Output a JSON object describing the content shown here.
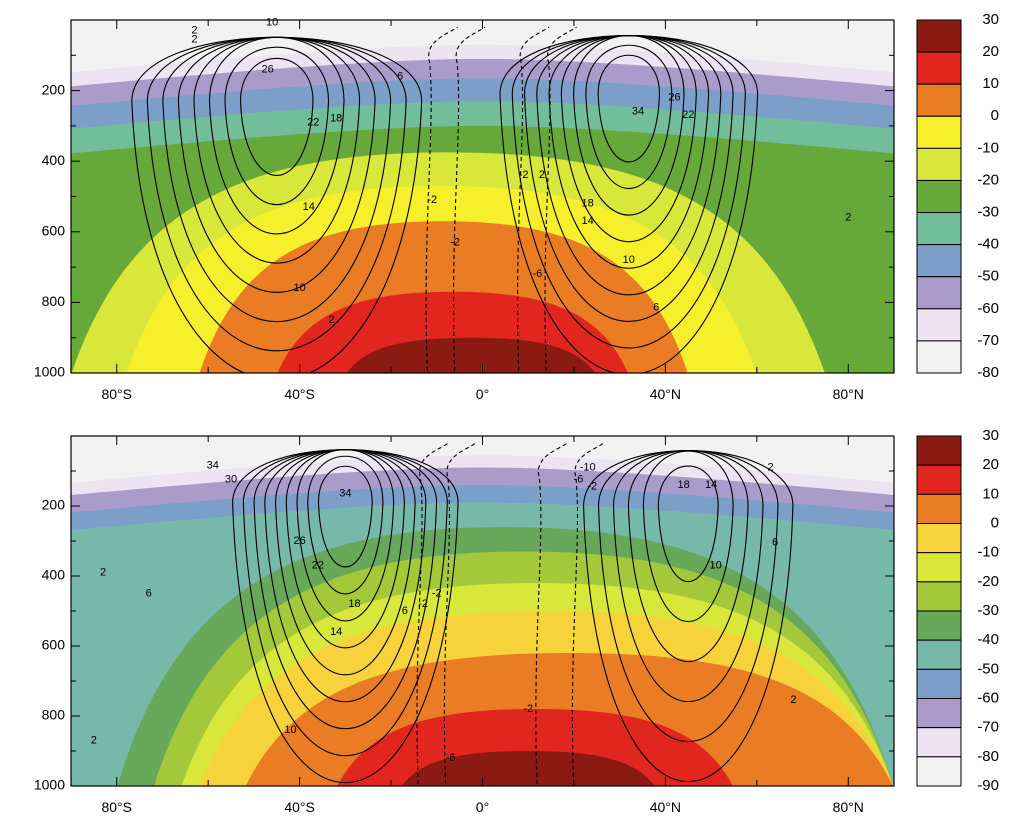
{
  "chart_data": [
    {
      "type": "heatmap",
      "title": "",
      "xlabel": "",
      "ylabel": "",
      "x_ticks": [
        "80°S",
        "40°S",
        "0°",
        "40°N",
        "80°N"
      ],
      "x_tick_values": [
        -80,
        -40,
        0,
        40,
        80
      ],
      "xlim": [
        -90,
        90
      ],
      "y_ticks": [
        "200",
        "400",
        "600",
        "800",
        "1000"
      ],
      "y_tick_values": [
        200,
        400,
        600,
        800,
        1000
      ],
      "ylim": [
        1000,
        0
      ],
      "colorbar": {
        "labels": [
          "30",
          "20",
          "10",
          "0",
          "-10",
          "-20",
          "-30",
          "-40",
          "-50",
          "-60",
          "-70",
          "-80"
        ],
        "colors": [
          "#8b1a12",
          "#e0261f",
          "#ea7c24",
          "#f6ef2c",
          "#d9e63a",
          "#67a83a",
          "#72bd9a",
          "#7c9fc9",
          "#a99ccb",
          "#ece4f1",
          "#f2f2f2"
        ]
      },
      "temperature_bands": [
        {
          "value": 30,
          "depth": 900,
          "edges": [
            -30,
            25
          ]
        },
        {
          "value": 20,
          "depth": 770,
          "edges": [
            -45,
            32
          ]
        },
        {
          "value": 10,
          "depth": 570,
          "edges": [
            -62,
            45
          ]
        },
        {
          "value": 0,
          "depth": 470,
          "edges": [
            -78,
            60
          ]
        },
        {
          "value": -10,
          "depth": 375,
          "edges": [
            -90,
            75
          ]
        },
        {
          "value": -20,
          "depth": 300,
          "edges": [
            -90,
            90
          ]
        },
        {
          "value": -30,
          "depth": 230,
          "edges": [
            -90,
            90
          ]
        },
        {
          "value": -40,
          "depth": 165,
          "edges": [
            -90,
            90
          ]
        },
        {
          "value": -50,
          "depth": 110,
          "edges": [
            -90,
            90
          ]
        },
        {
          "value": -60,
          "depth": 70,
          "edges": [
            -90,
            90
          ]
        },
        {
          "value": -70,
          "depth": 40,
          "edges": [
            -90,
            90
          ]
        }
      ],
      "contour_labels": [
        {
          "text": "10",
          "lat": -46,
          "p": 8
        },
        {
          "text": "2",
          "lat": -63,
          "p": 30
        },
        {
          "text": "2",
          "lat": -63,
          "p": 55
        },
        {
          "text": "26",
          "lat": -47,
          "p": 140
        },
        {
          "text": "6",
          "lat": -18,
          "p": 160
        },
        {
          "text": "18",
          "lat": -32,
          "p": 280
        },
        {
          "text": "22",
          "lat": -37,
          "p": 290
        },
        {
          "text": "14",
          "lat": -38,
          "p": 530
        },
        {
          "text": "10",
          "lat": -40,
          "p": 760
        },
        {
          "text": "2",
          "lat": -33,
          "p": 850
        },
        {
          "text": "-2",
          "lat": -11,
          "p": 510
        },
        {
          "text": "-2",
          "lat": -6,
          "p": 630
        },
        {
          "text": "-6",
          "lat": 12,
          "p": 720
        },
        {
          "text": "-2",
          "lat": 9,
          "p": 440
        },
        {
          "text": "2",
          "lat": 13,
          "p": 440
        },
        {
          "text": "34",
          "lat": 34,
          "p": 260
        },
        {
          "text": "26",
          "lat": 42,
          "p": 220
        },
        {
          "text": "22",
          "lat": 45,
          "p": 270
        },
        {
          "text": "18",
          "lat": 23,
          "p": 520
        },
        {
          "text": "14",
          "lat": 23,
          "p": 570
        },
        {
          "text": "10",
          "lat": 32,
          "p": 680
        },
        {
          "text": "6",
          "lat": 38,
          "p": 815
        },
        {
          "text": "2",
          "lat": 80,
          "p": 560
        }
      ]
    },
    {
      "type": "heatmap",
      "title": "",
      "xlabel": "",
      "ylabel": "",
      "x_ticks": [
        "80°S",
        "40°S",
        "0°",
        "40°N",
        "80°N"
      ],
      "x_tick_values": [
        -80,
        -40,
        0,
        40,
        80
      ],
      "xlim": [
        -90,
        90
      ],
      "y_ticks": [
        "200",
        "400",
        "600",
        "800",
        "1000"
      ],
      "y_tick_values": [
        200,
        400,
        600,
        800,
        1000
      ],
      "ylim": [
        1000,
        0
      ],
      "colorbar": {
        "labels": [
          "30",
          "20",
          "10",
          "0",
          "-10",
          "-20",
          "-30",
          "-40",
          "-50",
          "-60",
          "-70",
          "-80",
          "-90"
        ],
        "colors": [
          "#8b1a12",
          "#e0261f",
          "#ea7c24",
          "#f6d33a",
          "#d9e63a",
          "#a3c83a",
          "#67a85a",
          "#76b8aa",
          "#7c9fc9",
          "#a99ccb",
          "#ece4f1",
          "#f2f2f2"
        ]
      },
      "temperature_bands": [
        {
          "value": 30,
          "depth": 900,
          "edges": [
            -18,
            38
          ]
        },
        {
          "value": 20,
          "depth": 780,
          "edges": [
            -32,
            55
          ]
        },
        {
          "value": 10,
          "depth": 620,
          "edges": [
            -52,
            90
          ]
        },
        {
          "value": 0,
          "depth": 500,
          "edges": [
            -62,
            90
          ]
        },
        {
          "value": -10,
          "depth": 420,
          "edges": [
            -66,
            90
          ]
        },
        {
          "value": -20,
          "depth": 330,
          "edges": [
            -72,
            90
          ]
        },
        {
          "value": -30,
          "depth": 260,
          "edges": [
            -80,
            90
          ]
        },
        {
          "value": -40,
          "depth": 190,
          "edges": [
            -90,
            90
          ]
        },
        {
          "value": -50,
          "depth": 140,
          "edges": [
            -90,
            90
          ]
        },
        {
          "value": -60,
          "depth": 90,
          "edges": [
            -90,
            90
          ]
        },
        {
          "value": -70,
          "depth": 55,
          "edges": [
            -90,
            90
          ]
        },
        {
          "value": -80,
          "depth": 30,
          "edges": [
            -90,
            90
          ]
        }
      ],
      "contour_labels": [
        {
          "text": "34",
          "lat": -59,
          "p": 85
        },
        {
          "text": "30",
          "lat": -55,
          "p": 125
        },
        {
          "text": "34",
          "lat": -30,
          "p": 165
        },
        {
          "text": "26",
          "lat": -40,
          "p": 300
        },
        {
          "text": "22",
          "lat": -36,
          "p": 370
        },
        {
          "text": "18",
          "lat": -28,
          "p": 480
        },
        {
          "text": "14",
          "lat": -32,
          "p": 560
        },
        {
          "text": "6",
          "lat": -17,
          "p": 500
        },
        {
          "text": "-2",
          "lat": -10,
          "p": 450
        },
        {
          "text": "-2",
          "lat": -13,
          "p": 480
        },
        {
          "text": "6",
          "lat": -73,
          "p": 450
        },
        {
          "text": "2",
          "lat": -83,
          "p": 390
        },
        {
          "text": "2",
          "lat": -85,
          "p": 870
        },
        {
          "text": "10",
          "lat": -42,
          "p": 840
        },
        {
          "text": "-6",
          "lat": -7,
          "p": 920
        },
        {
          "text": "-2",
          "lat": 10,
          "p": 780
        },
        {
          "text": "-10",
          "lat": 23,
          "p": 90
        },
        {
          "text": "-6",
          "lat": 21,
          "p": 125
        },
        {
          "text": "-2",
          "lat": 24,
          "p": 145
        },
        {
          "text": "18",
          "lat": 44,
          "p": 140
        },
        {
          "text": "14",
          "lat": 50,
          "p": 140
        },
        {
          "text": "2",
          "lat": 63,
          "p": 90
        },
        {
          "text": "6",
          "lat": 64,
          "p": 305
        },
        {
          "text": "10",
          "lat": 51,
          "p": 370
        },
        {
          "text": "2",
          "lat": 68,
          "p": 755
        }
      ]
    }
  ]
}
